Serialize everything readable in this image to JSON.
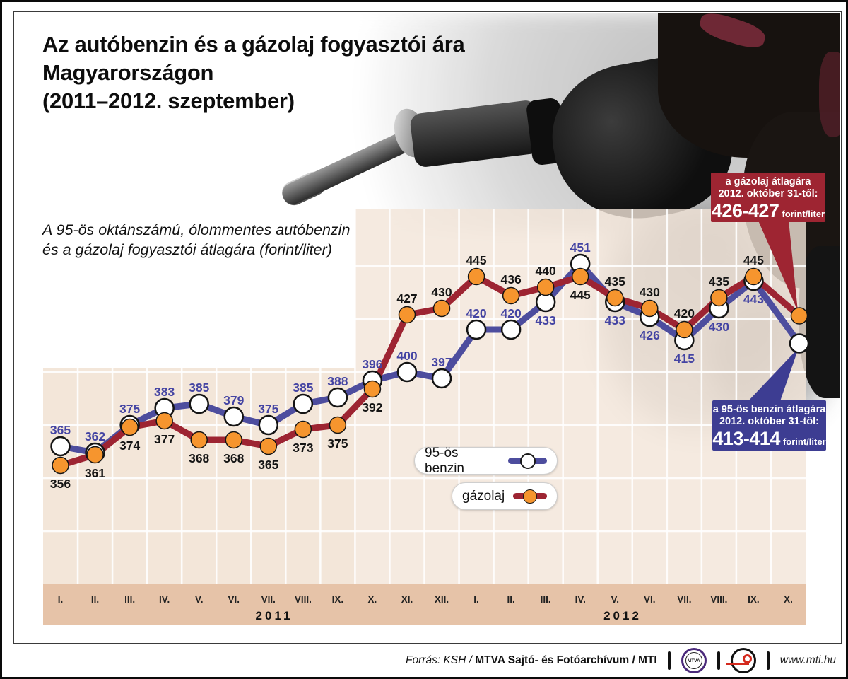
{
  "header": {
    "title_lines": [
      "Az autóbenzin és a gázolaj fogyasztói ára",
      "Magyarországon",
      "(2011–2012. szeptember)"
    ],
    "subtitle_lines": [
      "A 95-ös oktánszámú, ólommentes autóbenzin",
      "és a gázolaj fogyasztói átlagára (forint/liter)"
    ]
  },
  "legend": {
    "benzin_label": "95-ös benzin",
    "gazolaj_label": "gázolaj"
  },
  "callouts": {
    "diesel": {
      "line1": "a gázolaj átlagára",
      "line2": "2012. október 31-től:",
      "value": "426-427",
      "unit": "forint/liter",
      "bg": "#9e2532"
    },
    "petrol": {
      "line1": "a 95-ös benzin átlagára",
      "line2": "2012. október 31-től:",
      "value": "413-414",
      "unit": "forint/liter",
      "bg": "#3d3d92"
    }
  },
  "footer": {
    "source_italic": "Forrás: KSH /",
    "source_bold": "MTVA Sajtó- és Fotóarchívum / MTI",
    "mtva_logo_text": "MTVA",
    "url": "www.mti.hu"
  },
  "chart_data": {
    "type": "line",
    "title": "Az autóbenzin és a gázolaj fogyasztói ára Magyarországon (2011–2012. szeptember)",
    "ylabel": "forint/liter",
    "x_labels": [
      "I.",
      "II.",
      "III.",
      "IV.",
      "V.",
      "VI.",
      "VII.",
      "VIII.",
      "IX.",
      "X.",
      "XI.",
      "XII.",
      "I.",
      "II.",
      "III.",
      "IV.",
      "V.",
      "VI.",
      "VII.",
      "VIII.",
      "IX.",
      "X."
    ],
    "year_groups": [
      {
        "label": "2011",
        "from": 0,
        "to": 11
      },
      {
        "label": "2012",
        "from": 12,
        "to": 21
      }
    ],
    "y_gridlines": [
      325,
      350,
      375,
      400,
      425,
      450
    ],
    "grid": true,
    "legend_position": "inside-bottom-left",
    "series": [
      {
        "name": "95-ös benzin",
        "line_color": "#4d4d9e",
        "marker": "white-circle",
        "marker_color": "#ffffff",
        "label_color": "#4444a3",
        "values": [
          365,
          362,
          375,
          383,
          385,
          379,
          375,
          385,
          388,
          396,
          400,
          397,
          420,
          420,
          433,
          451,
          433,
          426,
          415,
          430,
          443,
          413.5
        ],
        "point_labels": [
          "365",
          "362",
          "375",
          "383",
          "385",
          "379",
          "375",
          "385",
          "388",
          "396",
          "400",
          "397",
          "420",
          "420",
          "433",
          "451",
          "433",
          "426",
          "415",
          "430",
          "443",
          ""
        ],
        "label_side": [
          "above",
          "above",
          "above",
          "above",
          "above",
          "above",
          "above",
          "above",
          "above",
          "above",
          "above",
          "above",
          "above",
          "above",
          "below",
          "above",
          "below",
          "below",
          "below",
          "below",
          "below",
          ""
        ],
        "final_annotation": "a 95-ös benzin átlagára 2012. október 31-től: 413-414 forint/liter"
      },
      {
        "name": "gázolaj",
        "line_color": "#9d2432",
        "marker": "orange-circle",
        "marker_color": "#f6952e",
        "label_color": "#151515",
        "values": [
          356,
          361,
          374,
          377,
          368,
          368,
          365,
          373,
          375,
          392,
          427,
          430,
          445,
          436,
          440,
          445,
          435,
          430,
          420,
          435,
          445,
          426.5
        ],
        "point_labels": [
          "356",
          "361",
          "374",
          "377",
          "368",
          "368",
          "365",
          "373",
          "375",
          "392",
          "427",
          "430",
          "445",
          "436",
          "440",
          "445",
          "435",
          "430",
          "420",
          "435",
          "445",
          ""
        ],
        "label_side": [
          "below",
          "below",
          "below",
          "below",
          "below",
          "below",
          "below",
          "below",
          "below",
          "below",
          "above",
          "above",
          "above",
          "above",
          "above",
          "below",
          "above",
          "above",
          "above",
          "above",
          "above",
          ""
        ],
        "final_annotation": "a gázolaj átlagára 2012. október 31-től: 426-427 forint/liter"
      }
    ]
  }
}
